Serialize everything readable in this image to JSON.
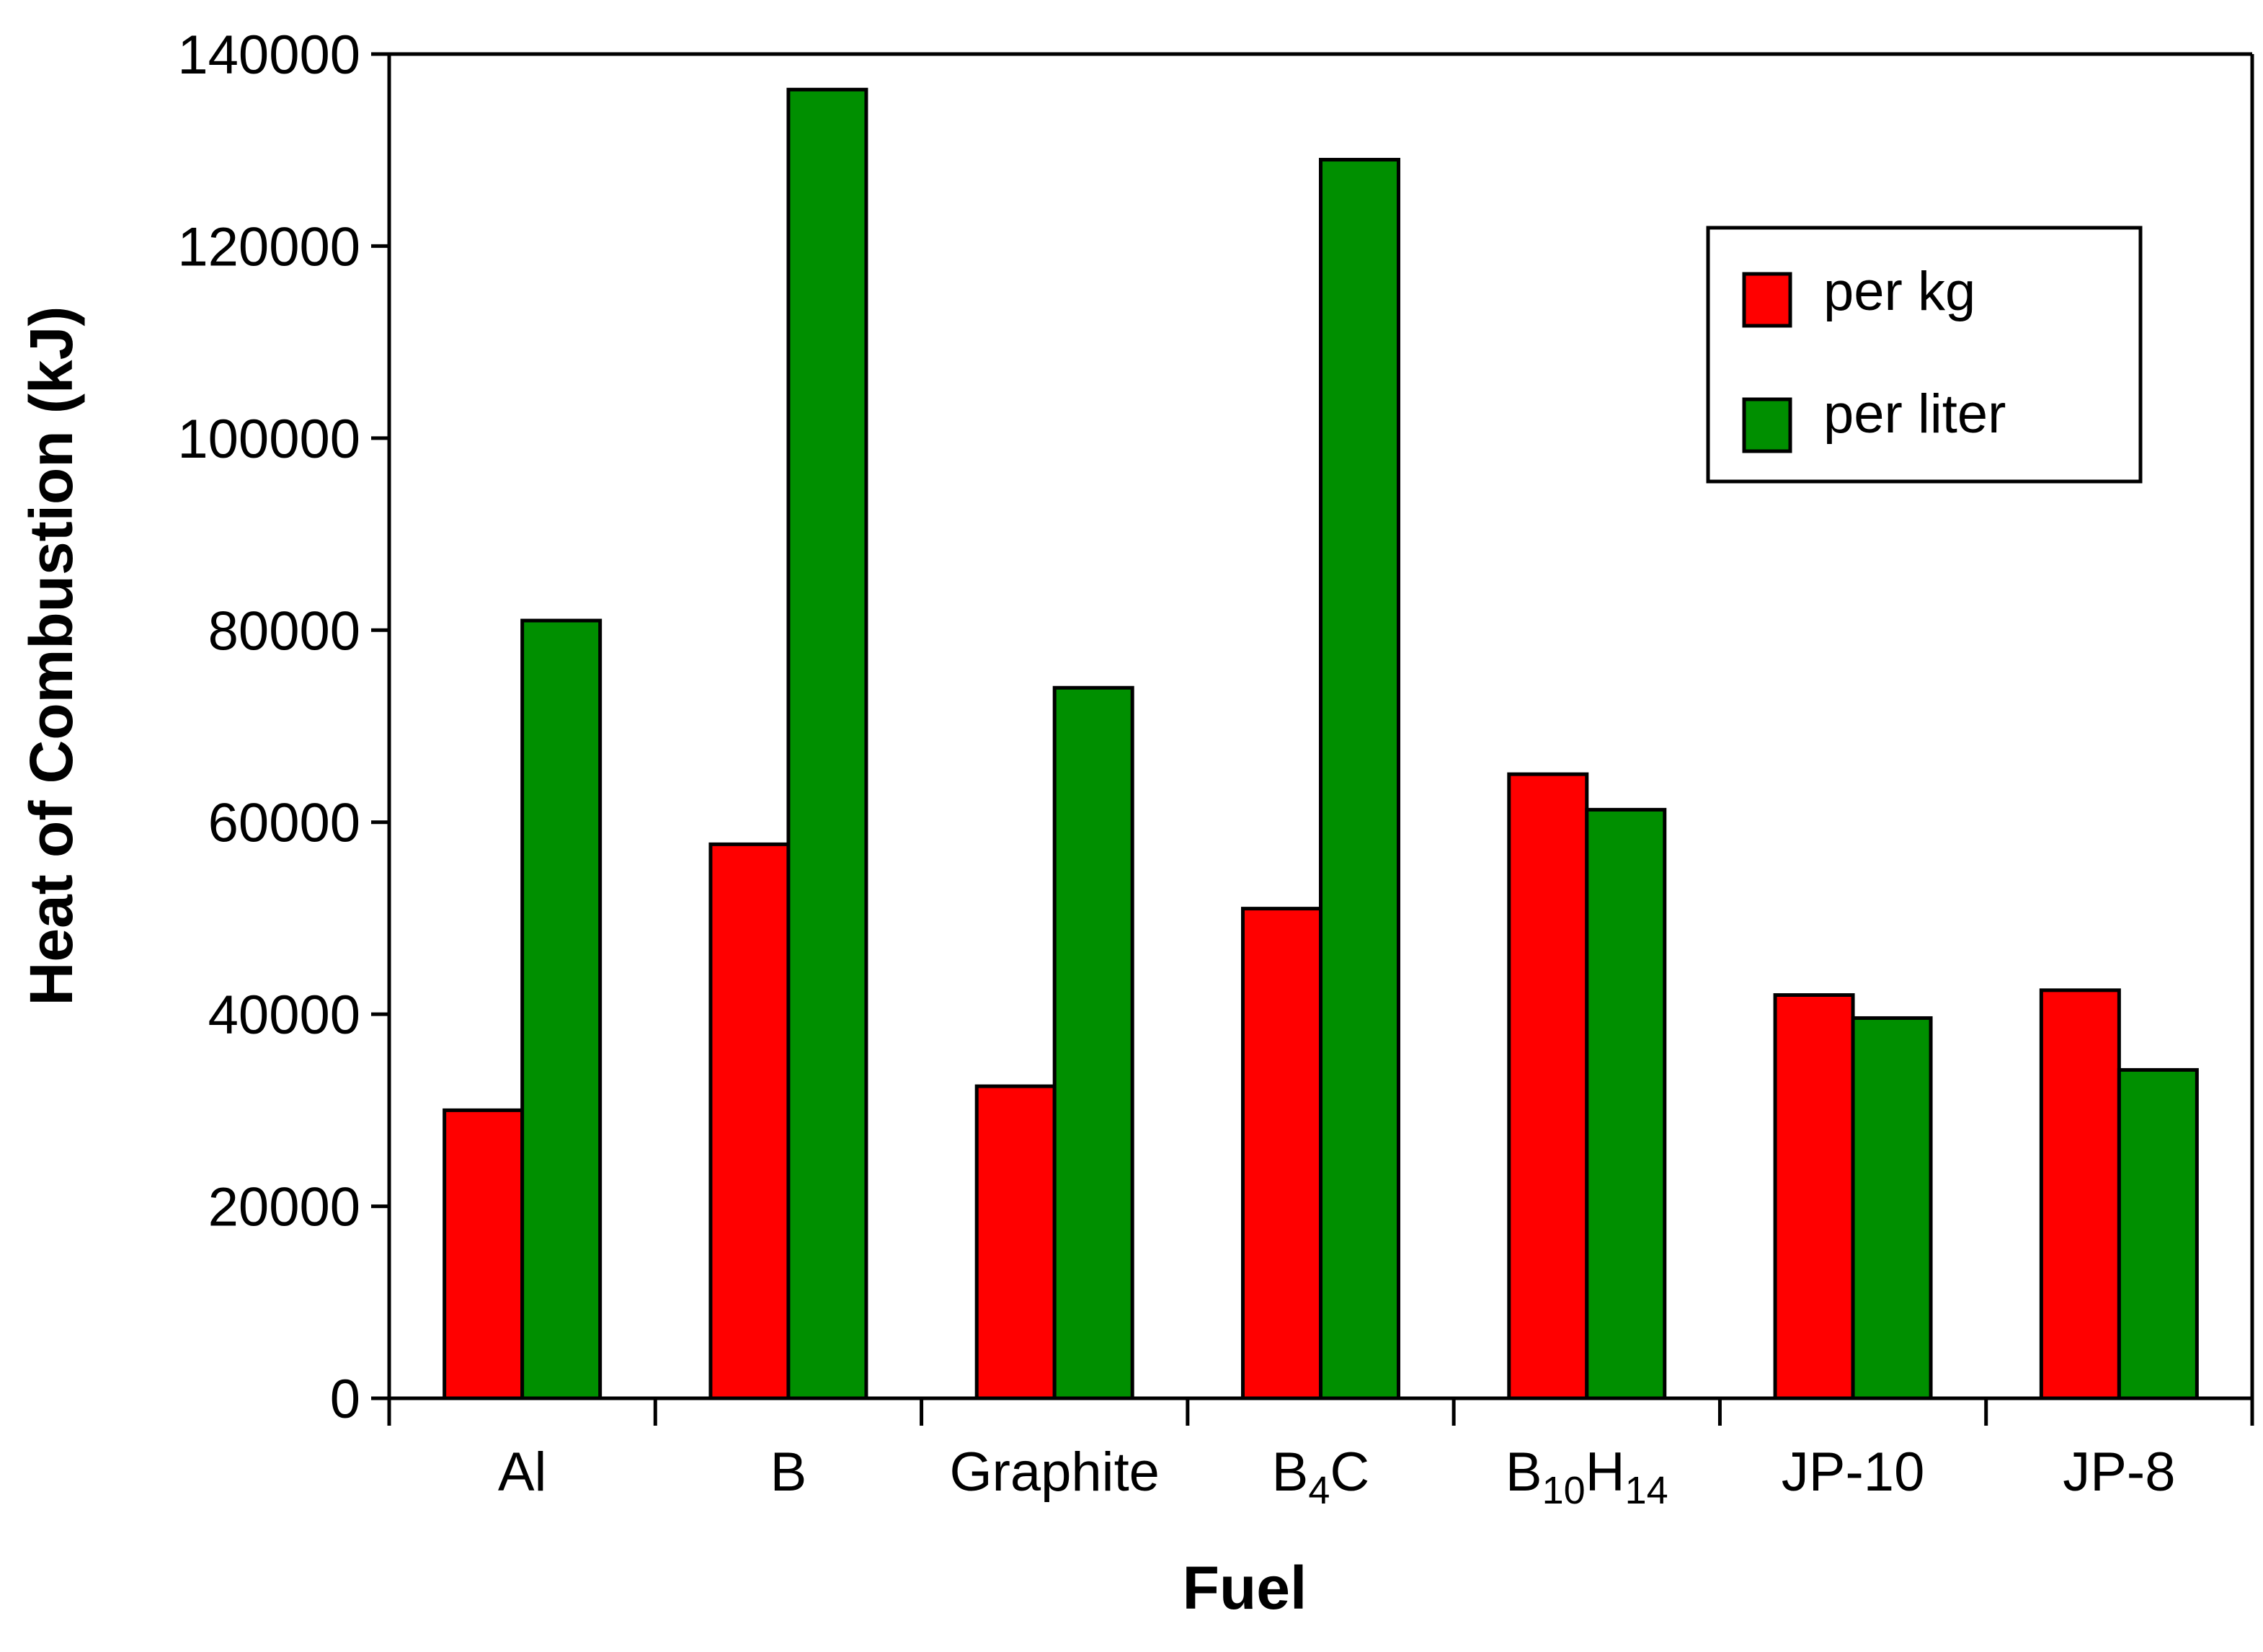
{
  "chart_data": {
    "type": "bar",
    "title": "",
    "xlabel": "Fuel",
    "ylabel": "Heat of Combustion (kJ)",
    "ylim": [
      0,
      140000
    ],
    "yticks": [
      "0",
      "20000",
      "40000",
      "60000",
      "80000",
      "100000",
      "120000",
      "140000"
    ],
    "categories": [
      {
        "base": "Al"
      },
      {
        "base": "B"
      },
      {
        "base": "Graphite"
      },
      {
        "base": "B",
        "sub1": "4",
        "mid": "C"
      },
      {
        "base": "B",
        "sub1": "10",
        "mid": "H",
        "sub2": "14"
      },
      {
        "base": "JP-10"
      },
      {
        "base": "JP-8"
      }
    ],
    "series": [
      {
        "name": "per kg",
        "color": "#ff0000",
        "values": [
          30000,
          57700,
          32500,
          51000,
          65000,
          42000,
          42500
        ]
      },
      {
        "name": "per liter",
        "color": "#008f00",
        "values": [
          81000,
          136300,
          74000,
          129000,
          61300,
          39600,
          34200
        ]
      }
    ],
    "legend": {
      "position": "top-right"
    },
    "grid": false
  }
}
